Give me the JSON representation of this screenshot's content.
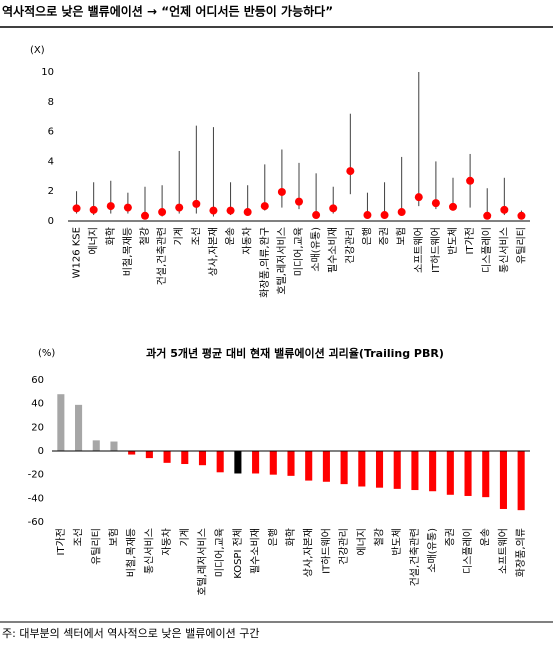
{
  "header": {
    "title": "역사적으로 낮은 밸류에이션 → “언제 어디서든 반등이 가능하다”"
  },
  "chart_data": [
    {
      "type": "range",
      "unit": "(X)",
      "categories": [
        "W126 KSE",
        "에너지",
        "화학",
        "비철,목재등",
        "철강",
        "건설,건축관련",
        "기계",
        "조선",
        "상사,자본재",
        "운송",
        "자동차",
        "화장품,의류,완구",
        "호텔,레저서비스",
        "미디어,교육",
        "소매(유통)",
        "필수소비재",
        "건강관리",
        "은행",
        "증권",
        "보험",
        "소프트웨어",
        "IT하드웨어",
        "반도체",
        "IT가전",
        "디스플레이",
        "통신서비스",
        "유틸리티"
      ],
      "low": [
        0.5,
        0.4,
        0.5,
        0.5,
        0.2,
        0.3,
        0.5,
        0.5,
        0.3,
        0.4,
        0.4,
        0.7,
        0.9,
        0.8,
        0.2,
        0.5,
        1.8,
        0.2,
        0.3,
        0.4,
        1.0,
        0.8,
        0.8,
        0.9,
        0.2,
        0.4,
        0.3
      ],
      "high": [
        2.0,
        2.6,
        2.7,
        1.9,
        2.3,
        2.4,
        4.7,
        6.4,
        6.3,
        2.6,
        2.4,
        3.8,
        4.8,
        3.9,
        3.2,
        2.3,
        7.2,
        1.9,
        2.6,
        4.3,
        10.0,
        4.0,
        2.9,
        4.5,
        2.2,
        2.9,
        0.7
      ],
      "values": [
        0.85,
        0.75,
        1.0,
        0.9,
        0.35,
        0.6,
        0.9,
        1.15,
        0.7,
        0.7,
        0.6,
        1.0,
        1.95,
        1.3,
        0.4,
        0.85,
        3.35,
        0.4,
        0.4,
        0.6,
        1.6,
        1.2,
        0.95,
        2.7,
        0.35,
        0.75,
        0.35
      ],
      "color": "#ff0000",
      "range_color": "#404040",
      "ylim": [
        0,
        10
      ],
      "yticks": [
        0,
        2,
        4,
        6,
        8,
        10
      ]
    },
    {
      "type": "bar",
      "title": "과거 5개년 평균 대비 현재 밸류에이션 괴리율(Trailing PBR)",
      "unit": "(%)",
      "categories": [
        "IT가전",
        "조선",
        "유틸리티",
        "보험",
        "비철,목재등",
        "통신서비스",
        "자동차",
        "기계",
        "호텔,레저서비스",
        "미디어,교육",
        "KOSPI 전체",
        "필수소비재",
        "은행",
        "화학",
        "상사,자본재",
        "IT하드웨어",
        "건강관리",
        "에너지",
        "철강",
        "반도체",
        "건설,건축관련",
        "소매(유통)",
        "증권",
        "디스플레이",
        "운송",
        "소프트웨어",
        "화장품,의류"
      ],
      "values": [
        48,
        39,
        9,
        8,
        -3,
        -6,
        -10,
        -11,
        -12,
        -18,
        -19,
        -19,
        -20,
        -21,
        -25,
        -26,
        -28,
        -30,
        -31,
        -32,
        -33,
        -34,
        -37,
        -38,
        -39,
        -49,
        -50
      ],
      "colors": [
        "#a6a6a6",
        "#a6a6a6",
        "#a6a6a6",
        "#a6a6a6",
        "#ff0000",
        "#ff0000",
        "#ff0000",
        "#ff0000",
        "#ff0000",
        "#ff0000",
        "#000000",
        "#ff0000",
        "#ff0000",
        "#ff0000",
        "#ff0000",
        "#ff0000",
        "#ff0000",
        "#ff0000",
        "#ff0000",
        "#ff0000",
        "#ff0000",
        "#ff0000",
        "#ff0000",
        "#ff0000",
        "#ff0000",
        "#ff0000",
        "#ff0000"
      ],
      "ylim": [
        -60,
        60
      ],
      "yticks": [
        -60,
        -40,
        -20,
        0,
        20,
        40,
        60
      ]
    }
  ],
  "footnote": "주: 대부분의 섹터에서 역사적으로 낮은 밸류에이션 구간"
}
